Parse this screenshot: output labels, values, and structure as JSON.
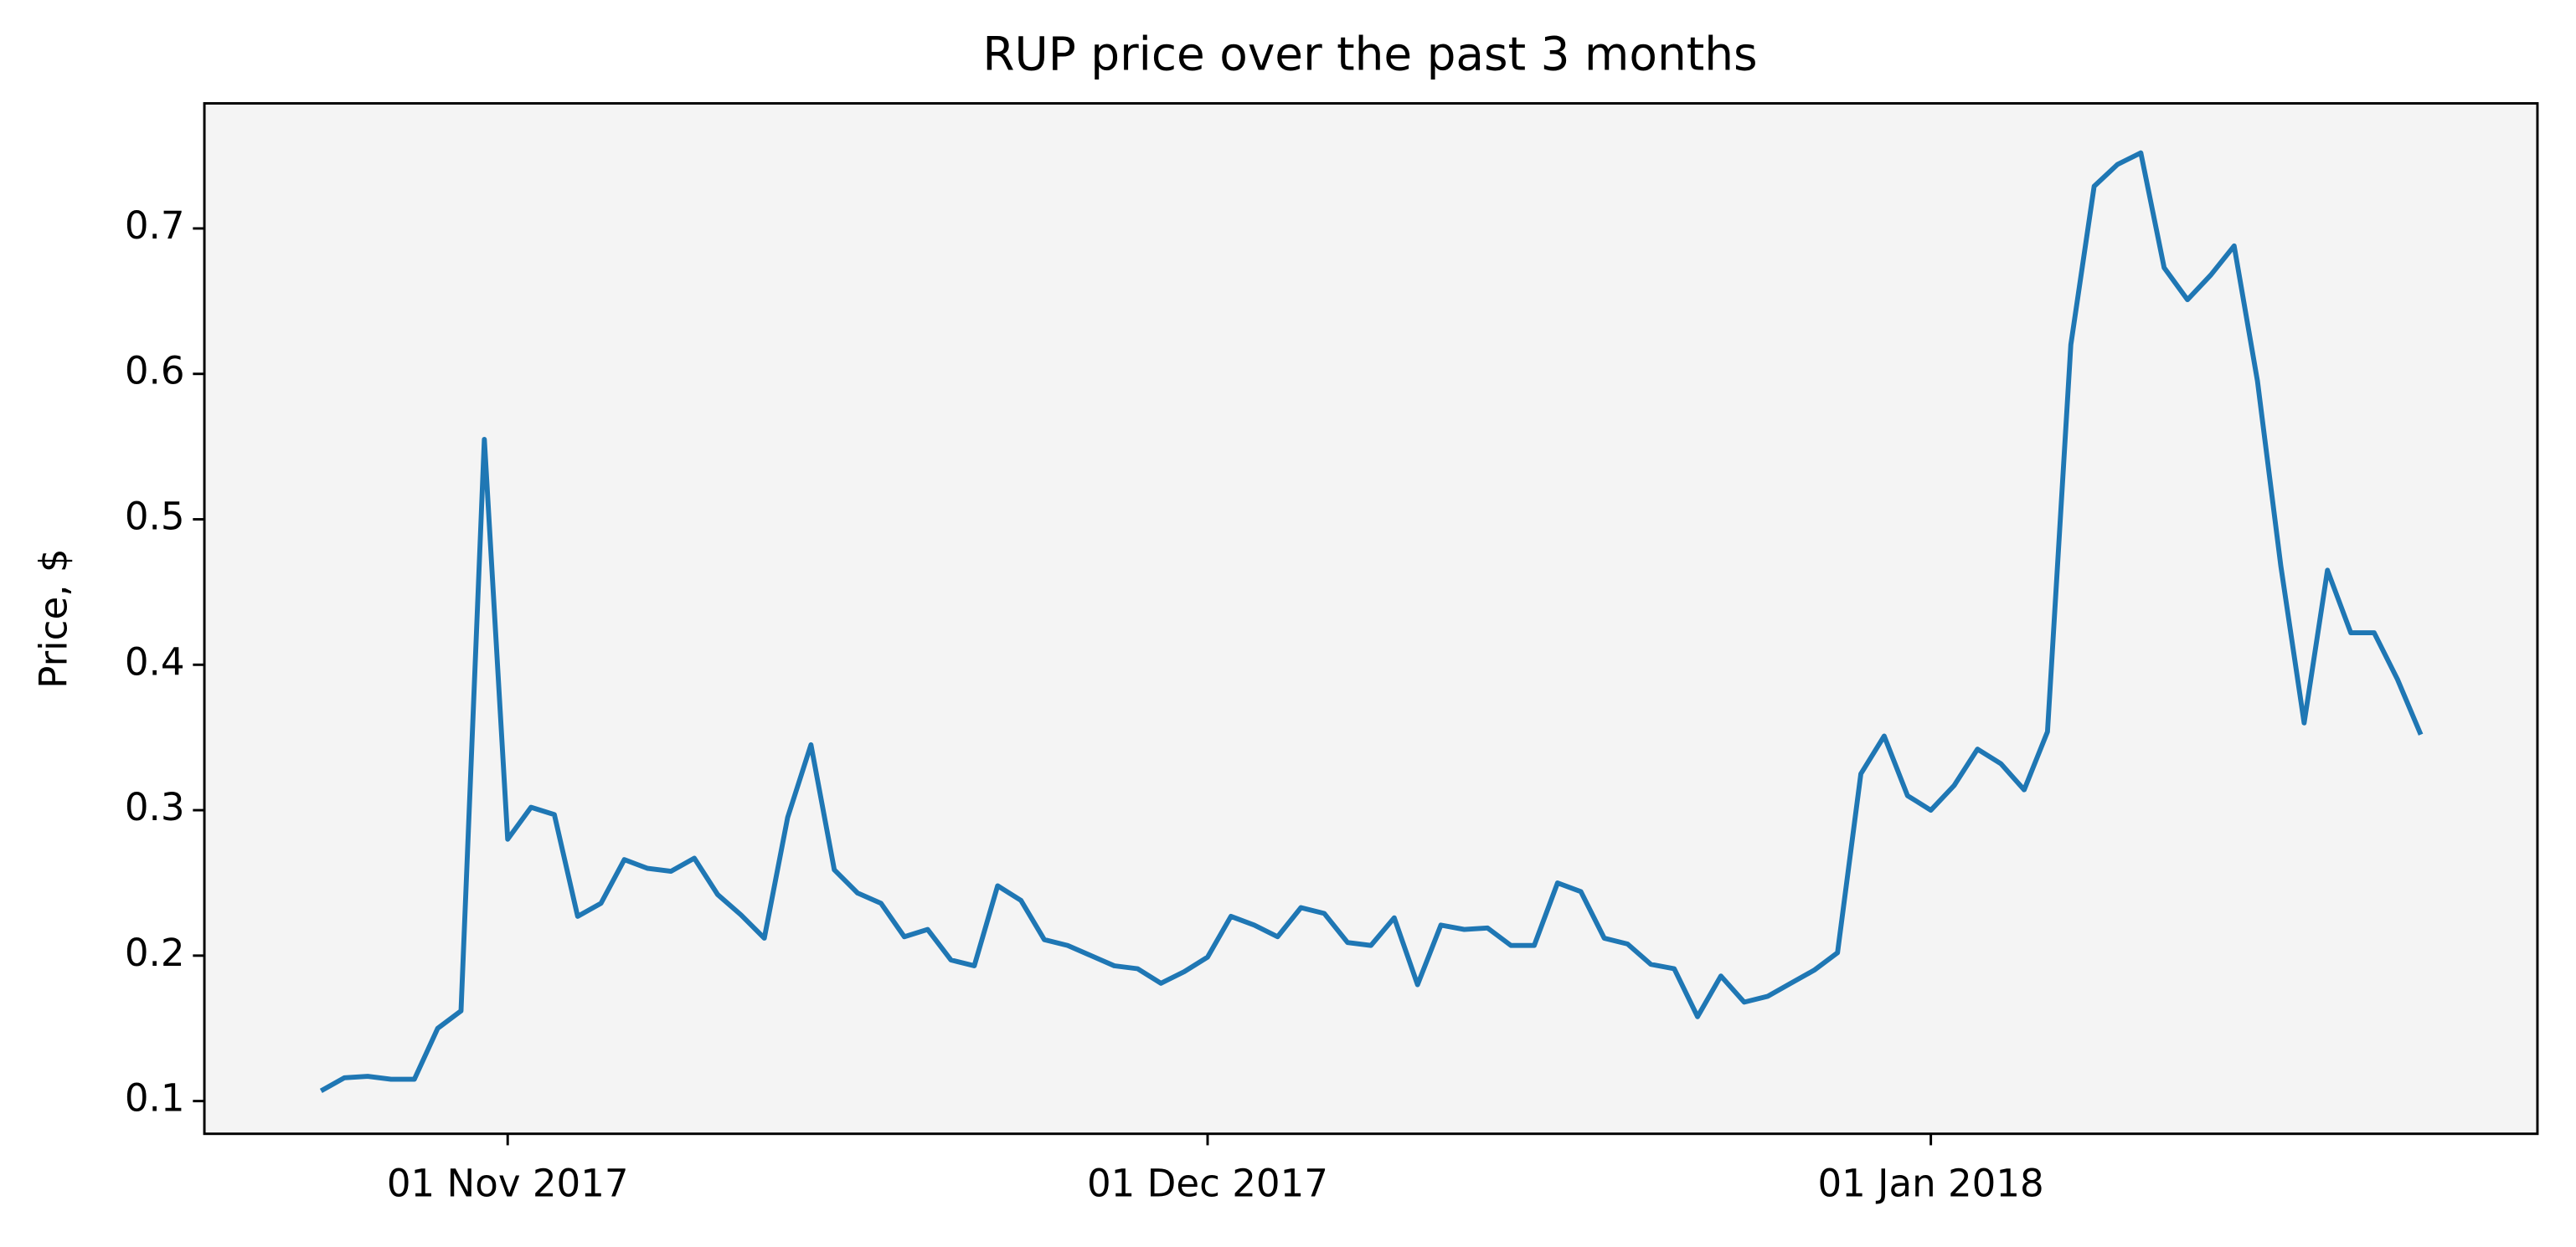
{
  "chart_data": {
    "type": "line",
    "title": "RUP price over the past 3 months",
    "y_label": "Price, $",
    "x": [
      "2017-10-24",
      "2017-10-25",
      "2017-10-26",
      "2017-10-27",
      "2017-10-28",
      "2017-10-29",
      "2017-10-30",
      "2017-10-31",
      "2017-11-01",
      "2017-11-02",
      "2017-11-03",
      "2017-11-04",
      "2017-11-05",
      "2017-11-06",
      "2017-11-07",
      "2017-11-08",
      "2017-11-09",
      "2017-11-10",
      "2017-11-11",
      "2017-11-12",
      "2017-11-13",
      "2017-11-14",
      "2017-11-15",
      "2017-11-16",
      "2017-11-17",
      "2017-11-18",
      "2017-11-19",
      "2017-11-20",
      "2017-11-21",
      "2017-11-22",
      "2017-11-23",
      "2017-11-24",
      "2017-11-25",
      "2017-11-26",
      "2017-11-27",
      "2017-11-28",
      "2017-11-29",
      "2017-11-30",
      "2017-12-01",
      "2017-12-02",
      "2017-12-03",
      "2017-12-04",
      "2017-12-05",
      "2017-12-06",
      "2017-12-07",
      "2017-12-08",
      "2017-12-09",
      "2017-12-10",
      "2017-12-11",
      "2017-12-12",
      "2017-12-13",
      "2017-12-14",
      "2017-12-15",
      "2017-12-16",
      "2017-12-17",
      "2017-12-18",
      "2017-12-19",
      "2017-12-20",
      "2017-12-21",
      "2017-12-22",
      "2017-12-23",
      "2017-12-24",
      "2017-12-25",
      "2017-12-26",
      "2017-12-27",
      "2017-12-28",
      "2017-12-29",
      "2017-12-30",
      "2017-12-31",
      "2018-01-01",
      "2018-01-02",
      "2018-01-03",
      "2018-01-04",
      "2018-01-05",
      "2018-01-06",
      "2018-01-07",
      "2018-01-08",
      "2018-01-09",
      "2018-01-10",
      "2018-01-11",
      "2018-01-12",
      "2018-01-13",
      "2018-01-14",
      "2018-01-15",
      "2018-01-16",
      "2018-01-17",
      "2018-01-18",
      "2018-01-19",
      "2018-01-20",
      "2018-01-21",
      "2018-01-22"
    ],
    "values": [
      0.107,
      0.116,
      0.117,
      0.115,
      0.115,
      0.15,
      0.162,
      0.555,
      0.28,
      0.302,
      0.297,
      0.227,
      0.236,
      0.266,
      0.26,
      0.258,
      0.267,
      0.242,
      0.228,
      0.212,
      0.295,
      0.345,
      0.259,
      0.243,
      0.236,
      0.213,
      0.218,
      0.197,
      0.193,
      0.248,
      0.238,
      0.211,
      0.207,
      0.2,
      0.193,
      0.191,
      0.181,
      0.189,
      0.199,
      0.227,
      0.221,
      0.213,
      0.233,
      0.229,
      0.209,
      0.207,
      0.226,
      0.18,
      0.221,
      0.218,
      0.219,
      0.207,
      0.207,
      0.25,
      0.244,
      0.212,
      0.208,
      0.194,
      0.191,
      0.158,
      0.186,
      0.168,
      0.172,
      0.181,
      0.19,
      0.202,
      0.325,
      0.351,
      0.31,
      0.3,
      0.317,
      0.342,
      0.332,
      0.314,
      0.354,
      0.62,
      0.729,
      0.744,
      0.752,
      0.673,
      0.651,
      0.668,
      0.688,
      0.595,
      0.468,
      0.36,
      0.465,
      0.422,
      0.422,
      0.39,
      0.352
    ],
    "color": "#1f77b4",
    "xlim": [
      "2017-10-19",
      "2018-01-27"
    ],
    "xticks": [
      {
        "value": "2017-11-01",
        "label": "01 Nov 2017"
      },
      {
        "value": "2017-12-01",
        "label": "01 Dec 2017"
      },
      {
        "value": "2018-01-01",
        "label": "01 Jan 2018"
      }
    ],
    "ylim": [
      0.0775,
      0.786
    ],
    "yticks": [
      0.1,
      0.2,
      0.3,
      0.4,
      0.5,
      0.6,
      0.7
    ],
    "grid": false
  }
}
